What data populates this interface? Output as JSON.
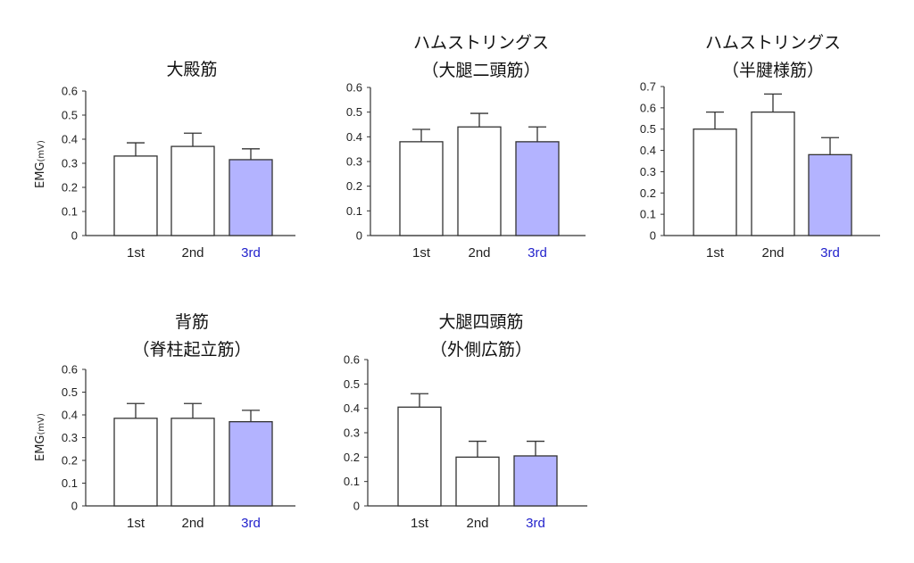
{
  "colors": {
    "plain_bar": "#ffffff",
    "highlight_bar": "#b3b3ff",
    "highlight_label": "#2222cc",
    "axis": "#333333"
  },
  "chart_data": [
    {
      "type": "bar",
      "title_lines": [
        "大殿筋"
      ],
      "ylabel": "EMG",
      "yunit": "(mV)",
      "categories": [
        "1st",
        "2nd",
        "3rd"
      ],
      "values": [
        0.33,
        0.37,
        0.315
      ],
      "errors": [
        0.055,
        0.055,
        0.045
      ],
      "highlight": [
        false,
        false,
        true
      ],
      "ylim": [
        0,
        0.6
      ],
      "yticks": [
        "0",
        "0.1",
        "0.2",
        "0.3",
        "0.4",
        "0.5",
        "0.6"
      ]
    },
    {
      "type": "bar",
      "title_lines": [
        "ハムストリングス",
        "（大腿二頭筋）"
      ],
      "ylabel": "",
      "yunit": "",
      "categories": [
        "1st",
        "2nd",
        "3rd"
      ],
      "values": [
        0.38,
        0.44,
        0.38
      ],
      "errors": [
        0.05,
        0.055,
        0.06
      ],
      "highlight": [
        false,
        false,
        true
      ],
      "ylim": [
        0,
        0.6
      ],
      "yticks": [
        "0",
        "0.1",
        "0.2",
        "0.3",
        "0.4",
        "0.5",
        "0.6"
      ]
    },
    {
      "type": "bar",
      "title_lines": [
        "ハムストリングス",
        "（半腱様筋）"
      ],
      "ylabel": "",
      "yunit": "",
      "categories": [
        "1st",
        "2nd",
        "3rd"
      ],
      "values": [
        0.5,
        0.58,
        0.38
      ],
      "errors": [
        0.08,
        0.085,
        0.08
      ],
      "highlight": [
        false,
        false,
        true
      ],
      "ylim": [
        0,
        0.7
      ],
      "yticks": [
        "0",
        "0.1",
        "0.2",
        "0.3",
        "0.4",
        "0.5",
        "0.6",
        "0.7"
      ]
    },
    {
      "type": "bar",
      "title_lines": [
        "背筋",
        "（脊柱起立筋）"
      ],
      "ylabel": "EMG",
      "yunit": "(mV)",
      "categories": [
        "1st",
        "2nd",
        "3rd"
      ],
      "values": [
        0.385,
        0.385,
        0.37
      ],
      "errors": [
        0.065,
        0.065,
        0.05
      ],
      "highlight": [
        false,
        false,
        true
      ],
      "ylim": [
        0,
        0.6
      ],
      "yticks": [
        "0",
        "0.1",
        "0.2",
        "0.3",
        "0.4",
        "0.5",
        "0.6"
      ]
    },
    {
      "type": "bar",
      "title_lines": [
        "大腿四頭筋",
        "（外側広筋）"
      ],
      "ylabel": "",
      "yunit": "",
      "categories": [
        "1st",
        "2nd",
        "3rd"
      ],
      "values": [
        0.405,
        0.2,
        0.205
      ],
      "errors": [
        0.055,
        0.065,
        0.06
      ],
      "highlight": [
        false,
        false,
        true
      ],
      "ylim": [
        0,
        0.6
      ],
      "yticks": [
        "0",
        "0.1",
        "0.2",
        "0.3",
        "0.4",
        "0.5",
        "0.6"
      ]
    }
  ]
}
